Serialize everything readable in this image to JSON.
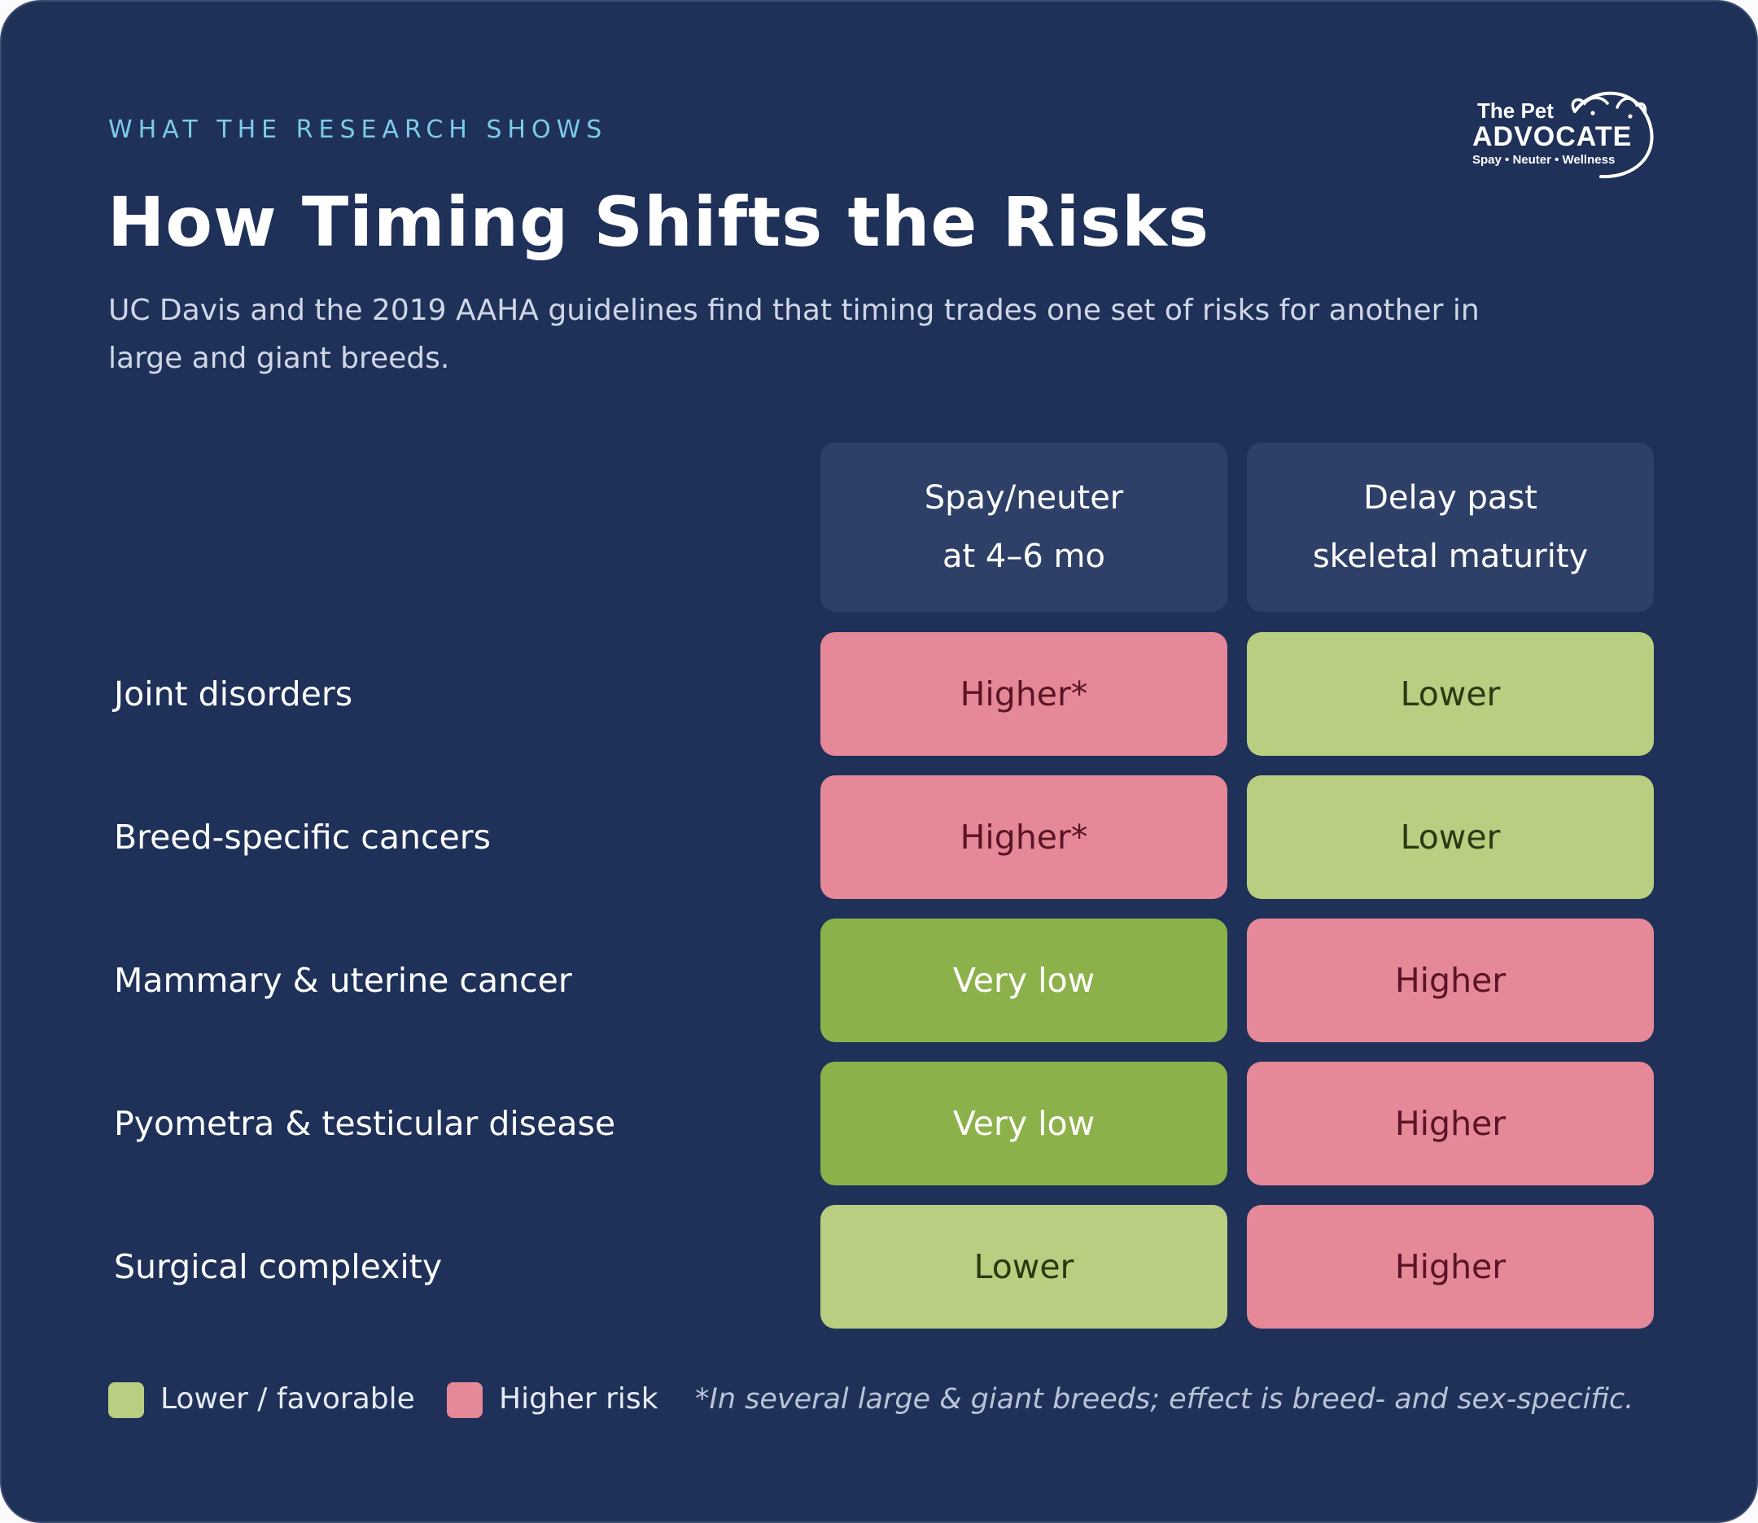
{
  "eyebrow": "WHAT THE RESEARCH SHOWS",
  "title": "How Timing Shifts the Risks",
  "subtitle": "UC Davis and the 2019 AAHA guidelines find that timing trades one set of risks for another in large and giant breeds.",
  "logo": {
    "line1": "The Pet",
    "line2": "ADVOCATE",
    "tagline": "Spay • Neuter • Wellness"
  },
  "columns": [
    {
      "line1": "Spay/neuter",
      "line2": "at 4–6 mo"
    },
    {
      "line1": "Delay past",
      "line2": "skeletal maturity"
    }
  ],
  "rows": [
    {
      "label": "Joint disorders",
      "cells": [
        {
          "text": "Higher*",
          "level": "higher"
        },
        {
          "text": "Lower",
          "level": "lower"
        }
      ]
    },
    {
      "label": "Breed-specific cancers",
      "cells": [
        {
          "text": "Higher*",
          "level": "higher"
        },
        {
          "text": "Lower",
          "level": "lower"
        }
      ]
    },
    {
      "label": "Mammary & uterine cancer",
      "cells": [
        {
          "text": "Very low",
          "level": "verylow"
        },
        {
          "text": "Higher",
          "level": "higher"
        }
      ]
    },
    {
      "label": "Pyometra & testicular disease",
      "cells": [
        {
          "text": "Very low",
          "level": "verylow"
        },
        {
          "text": "Higher",
          "level": "higher"
        }
      ]
    },
    {
      "label": "Surgical complexity",
      "cells": [
        {
          "text": "Lower",
          "level": "lower"
        },
        {
          "text": "Higher",
          "level": "higher"
        }
      ]
    }
  ],
  "legend": {
    "favorable": "Lower / favorable",
    "risk": "Higher risk",
    "note": "*In several large & giant breeds; effect is breed- and sex-specific."
  },
  "colors": {
    "background": "#1f3159",
    "header_cell": "#2f4068",
    "higher": "#e58898",
    "lower": "#b8ce80",
    "very_low": "#8db14a",
    "eyebrow": "#7ccbe6"
  }
}
